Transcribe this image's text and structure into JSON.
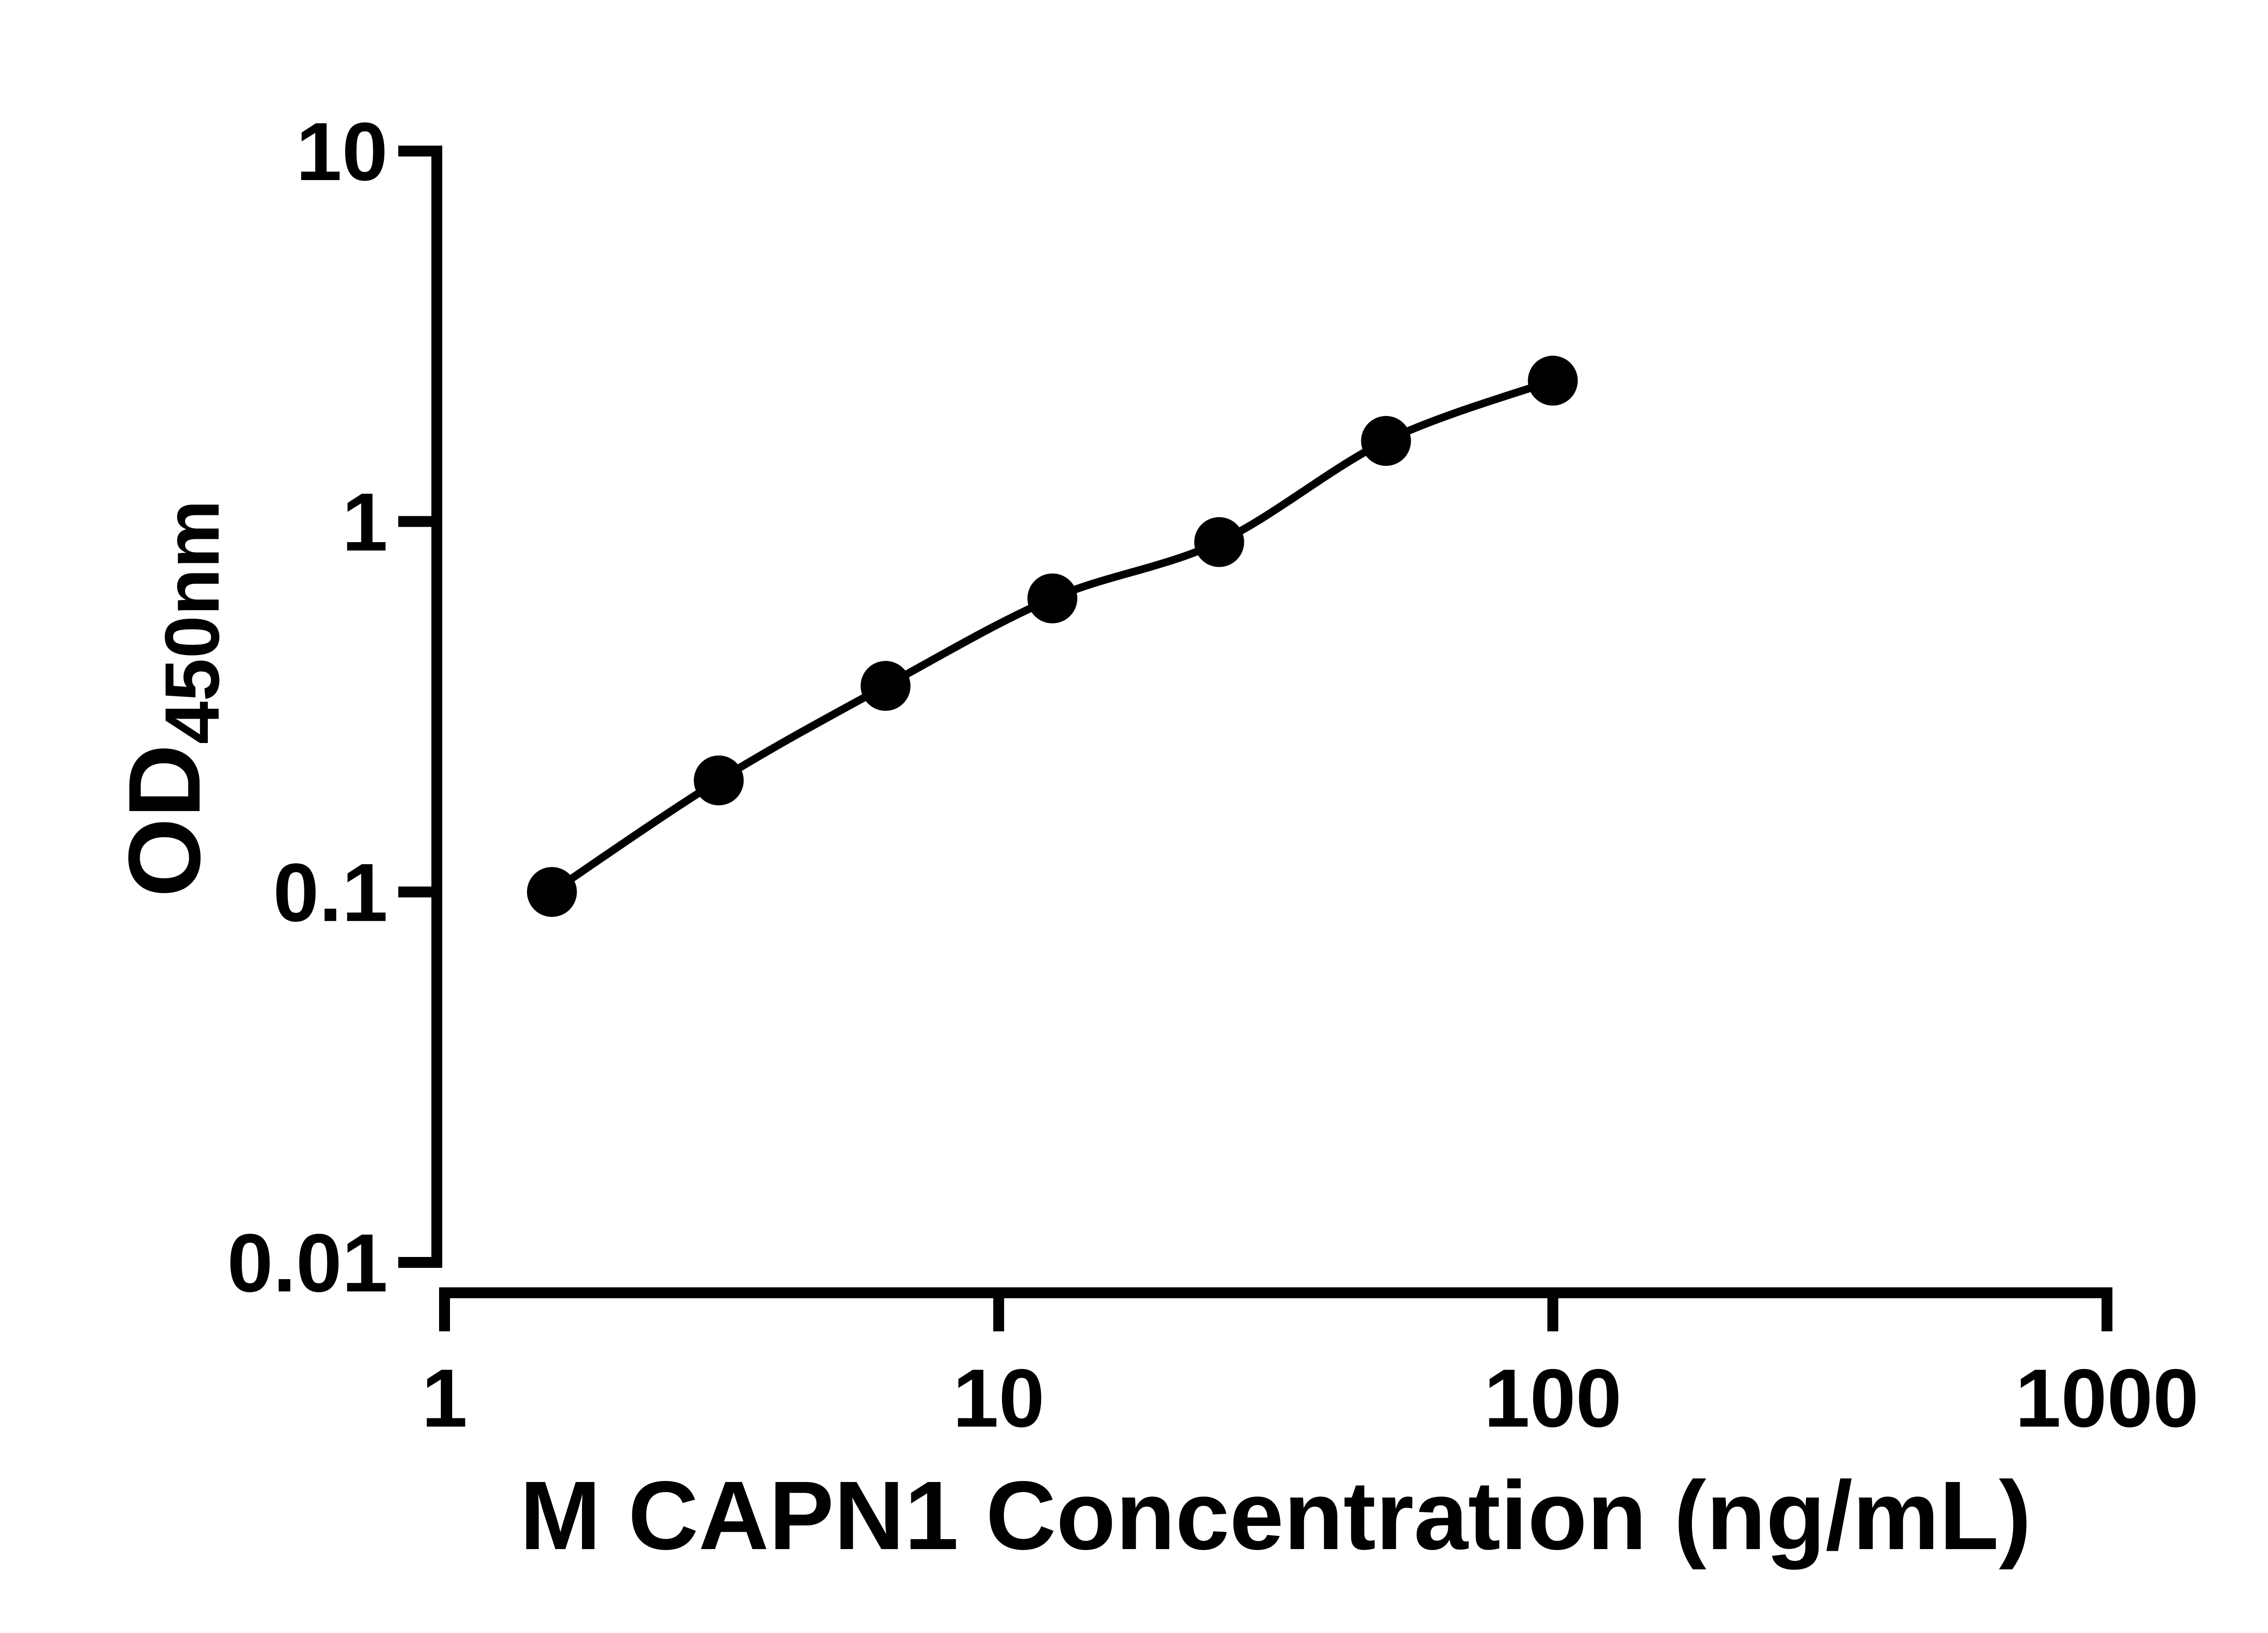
{
  "chart_data": {
    "type": "scatter",
    "title": "",
    "xlabel": "M CAPN1 Concentration (ng/mL)",
    "ylabel_main": "OD",
    "ylabel_sub": "450nm",
    "x_scale": "log",
    "y_scale": "log",
    "xlim": [
      1,
      1000
    ],
    "ylim": [
      0.01,
      10
    ],
    "x_ticks": [
      1,
      10,
      100,
      1000
    ],
    "x_tick_labels": [
      "1",
      "10",
      "100",
      "1000"
    ],
    "y_ticks": [
      10,
      1,
      0.1,
      0.01
    ],
    "y_tick_labels": [
      "10",
      "1",
      "0.1",
      "0.01"
    ],
    "x": [
      1.5625,
      3.125,
      6.25,
      12.5,
      25,
      50,
      100
    ],
    "y": [
      0.1,
      0.2,
      0.36,
      0.62,
      0.88,
      1.65,
      2.4
    ],
    "grid": "off",
    "legend": "none",
    "marker_color": "#000000",
    "line_color": "#000000",
    "axis_color": "#000000",
    "background": "#ffffff"
  }
}
